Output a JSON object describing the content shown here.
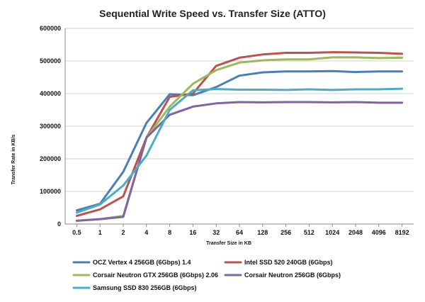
{
  "chart_data": {
    "type": "line",
    "title": "Sequential Write Speed vs. Transfer Size (ATTO)",
    "xlabel": "Transfer Size in KB",
    "ylabel": "Transfer Rate in KB/s",
    "ylim": [
      0,
      600000
    ],
    "yticks": [
      "0",
      "100000",
      "200000",
      "300000",
      "400000",
      "500000",
      "600000"
    ],
    "categories": [
      "0.5",
      "1",
      "2",
      "4",
      "8",
      "16",
      "32",
      "64",
      "128",
      "256",
      "512",
      "1024",
      "2048",
      "4096",
      "8192"
    ],
    "grid": true,
    "legend_position": "bottom",
    "series": [
      {
        "name": "OCZ Vertex 4 256GB (6Gbps) 1.4",
        "color": "#4a7ebb",
        "values": [
          42000,
          62000,
          160000,
          310000,
          398000,
          395000,
          420000,
          455000,
          465000,
          468000,
          468000,
          469000,
          466000,
          468000,
          468000
        ]
      },
      {
        "name": "Intel SSD 520 240GB (6Gbps)",
        "color": "#c0504d",
        "values": [
          25000,
          45000,
          85000,
          265000,
          390000,
          400000,
          485000,
          510000,
          520000,
          525000,
          525000,
          527000,
          526000,
          525000,
          522000
        ]
      },
      {
        "name": "Corsair Neutron GTX 256GB (6Gbps) 2.06",
        "color": "#9bbb59",
        "values": [
          10000,
          15000,
          25000,
          265000,
          360000,
          430000,
          472000,
          495000,
          502000,
          505000,
          505000,
          511000,
          511000,
          509000,
          510000
        ]
      },
      {
        "name": "Corsair Neutron 256GB (6Gbps)",
        "color": "#8064a2",
        "values": [
          10000,
          15000,
          22000,
          265000,
          335000,
          360000,
          370000,
          374000,
          373000,
          374000,
          374000,
          373000,
          374000,
          372000,
          372000
        ]
      },
      {
        "name": "Samsung SSD 830 256GB (6Gbps)",
        "color": "#4bacc6",
        "values": [
          35000,
          60000,
          118000,
          210000,
          350000,
          410000,
          414000,
          412000,
          412000,
          411000,
          413000,
          411000,
          413000,
          413000,
          415000
        ]
      }
    ]
  }
}
